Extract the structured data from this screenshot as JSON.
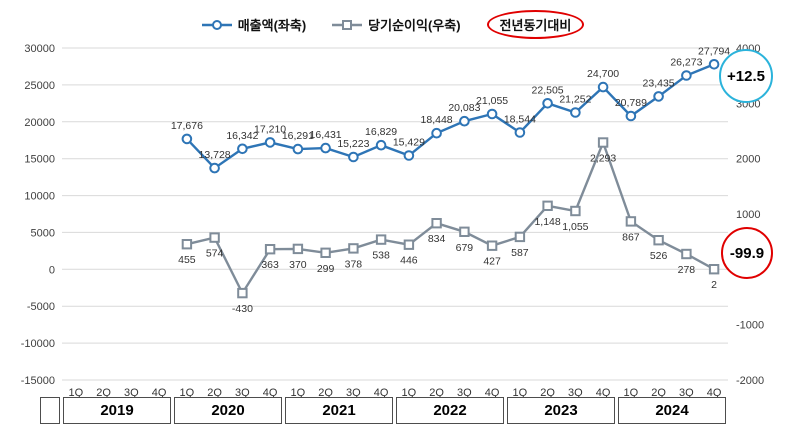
{
  "legend": {
    "series1_label": "매출액(좌축)",
    "series2_label": "당기순이익(우축)",
    "yoy_badge": "전년동기대비",
    "yoy_badge_color": "#E00000"
  },
  "annotations": {
    "revenue_yoy": "+12.5",
    "revenue_yoy_color": "#2BB3DB",
    "profit_yoy": "-99.9",
    "profit_yoy_color": "#E00000"
  },
  "chart_data": {
    "type": "line",
    "title": "",
    "legend_position": "top",
    "grid": true,
    "x_quarters": [
      "1Q",
      "2Q",
      "3Q",
      "4Q",
      "1Q",
      "2Q",
      "3Q",
      "4Q",
      "1Q",
      "2Q",
      "3Q",
      "4Q",
      "1Q",
      "2Q",
      "3Q",
      "4Q",
      "1Q",
      "2Q",
      "3Q",
      "4Q",
      "1Q",
      "2Q",
      "3Q",
      "4Q"
    ],
    "years": [
      "2019",
      "2020",
      "2021",
      "2022",
      "2023",
      "2024"
    ],
    "left_axis": {
      "min": -15000,
      "max": 30000,
      "step": 5000,
      "label": "매출액(좌축)"
    },
    "right_axis": {
      "min": -2000,
      "max": 4000,
      "step": 1000,
      "label": "당기순이익(우축)"
    },
    "series": [
      {
        "name": "매출액(좌축)",
        "axis": "left",
        "marker": "circle",
        "color": "#2E75B6",
        "label_pos": "above",
        "start_index": 4,
        "values": [
          17676,
          13728,
          16342,
          17210,
          16291,
          16431,
          15223,
          16829,
          15429,
          18448,
          20083,
          21055,
          18544,
          22505,
          21252,
          24700,
          20789,
          23435,
          26273,
          27794
        ]
      },
      {
        "name": "당기순이익(우축)",
        "axis": "right",
        "marker": "square",
        "color": "#7F8C99",
        "label_pos": "below",
        "start_index": 4,
        "values": [
          455,
          574,
          -430,
          363,
          370,
          299,
          378,
          538,
          446,
          834,
          679,
          427,
          587,
          1148,
          1055,
          2293,
          867,
          526,
          278,
          2
        ]
      }
    ]
  }
}
